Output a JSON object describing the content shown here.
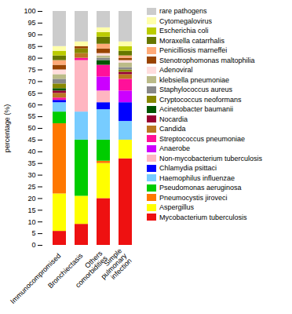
{
  "chart_data": {
    "type": "bar",
    "stacked": true,
    "categories": [
      "Immunocompromised",
      "Bronchiectasis",
      "Others comorbidities",
      "Simple pulmonary infection"
    ],
    "series": [
      {
        "name": "Mycobacterium tuberculosis",
        "color": "#EE1111",
        "values": [
          6,
          9,
          20,
          37
        ]
      },
      {
        "name": "Aspergillus",
        "color": "#FFFF00",
        "values": [
          16,
          12,
          15,
          8
        ]
      },
      {
        "name": "Pneumocystis jiroveci",
        "color": "#FF7700",
        "values": [
          30,
          0,
          1,
          0
        ]
      },
      {
        "name": "Pseudomonas aeruginosa",
        "color": "#00CC00",
        "values": [
          5,
          24,
          9,
          0
        ]
      },
      {
        "name": "Haemophilus influenzae",
        "color": "#77CCFF",
        "values": [
          4,
          12,
          13,
          8
        ]
      },
      {
        "name": "Chlamydia psittaci",
        "color": "#0000FF",
        "values": [
          1,
          0,
          3,
          8
        ]
      },
      {
        "name": "Non-mycobacterium tuberculosis",
        "color": "#FFB6C1",
        "values": [
          0,
          22,
          5,
          0
        ]
      },
      {
        "name": "Anaerobe",
        "color": "#CC00FF",
        "values": [
          0,
          0,
          6,
          5
        ]
      },
      {
        "name": "Streptococcus pneumoniae",
        "color": "#FF1199",
        "values": [
          1,
          1,
          5,
          5
        ]
      },
      {
        "name": "Candida",
        "color": "#BB7722",
        "values": [
          2,
          2,
          0,
          2
        ]
      },
      {
        "name": "Nocardia",
        "color": "#990033",
        "values": [
          1,
          0,
          0,
          1
        ]
      },
      {
        "name": "Acinetobacter baumanii",
        "color": "#005500",
        "values": [
          1,
          0,
          2,
          0
        ]
      },
      {
        "name": "Cryptococcus neoformans",
        "color": "#888800",
        "values": [
          2,
          2,
          0,
          1
        ]
      },
      {
        "name": "Staphylococcus aureus",
        "color": "#888888",
        "values": [
          2,
          0,
          1,
          1
        ]
      },
      {
        "name": "klebsiella pneumoniae",
        "color": "#BBBB88",
        "values": [
          2,
          0,
          1,
          2
        ]
      },
      {
        "name": "Adenoviral",
        "color": "#FFDDDD",
        "values": [
          2,
          0,
          1,
          1
        ]
      },
      {
        "name": "Stenotrophomonas maltophilia",
        "color": "#994400",
        "values": [
          2,
          1,
          2,
          1
        ]
      },
      {
        "name": "Penicilliosis marneffei",
        "color": "#FFAA77",
        "values": [
          2,
          0,
          2,
          1
        ]
      },
      {
        "name": "Moraxella catarrhalis",
        "color": "#667700",
        "values": [
          2,
          0,
          3,
          2
        ]
      },
      {
        "name": "Escherichia coli",
        "color": "#BBCC00",
        "values": [
          2,
          0,
          2,
          2
        ]
      },
      {
        "name": "Cytomegalovirus",
        "color": "#FFFFAA",
        "values": [
          2,
          2,
          2,
          2
        ]
      },
      {
        "name": "rare pathogens",
        "color": "#CCCCCC",
        "values": [
          15,
          13,
          7,
          13
        ]
      }
    ],
    "ylabel": "percentage (%)",
    "ylim": [
      0,
      100
    ],
    "yticks": [
      0,
      5,
      10,
      15,
      20,
      25,
      30,
      35,
      40,
      45,
      50,
      55,
      60,
      65,
      70,
      75,
      80,
      85,
      90,
      95,
      100
    ],
    "grid": false,
    "legend": "right"
  }
}
